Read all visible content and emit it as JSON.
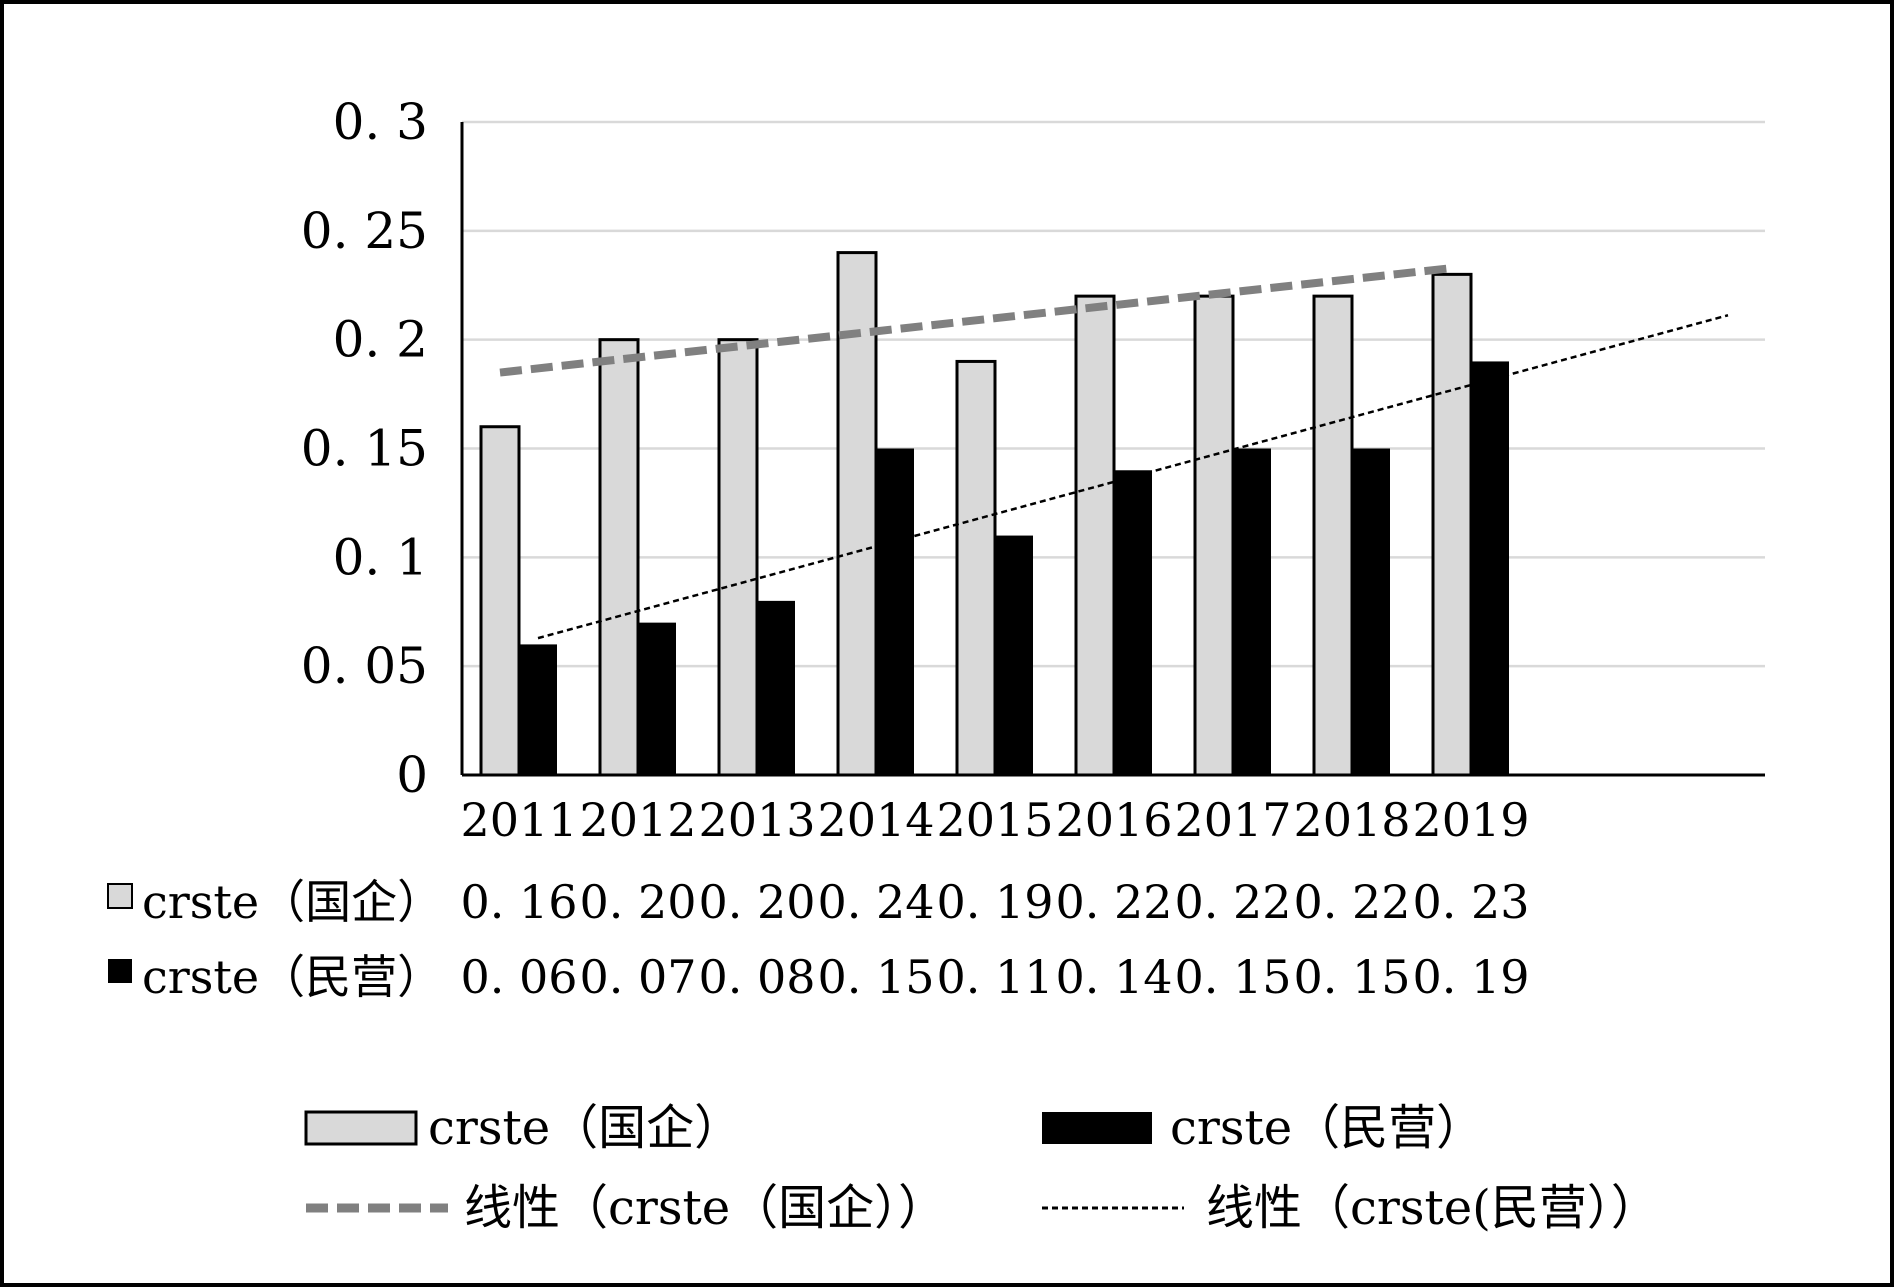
{
  "chart_data": {
    "type": "bar",
    "categories": [
      "2011",
      "2012",
      "2013",
      "2014",
      "2015",
      "2016",
      "2017",
      "2018",
      "2019"
    ],
    "series": [
      {
        "name": "crste（国企）",
        "values": [
          0.16,
          0.2,
          0.2,
          0.24,
          0.19,
          0.22,
          0.22,
          0.22,
          0.23
        ],
        "labels": [
          "0. 16",
          "0. 20",
          "0. 20",
          "0. 24",
          "0. 19",
          "0. 22",
          "0. 22",
          "0. 22",
          "0. 23"
        ],
        "color": "#d9d9d9"
      },
      {
        "name": "crste（民营）",
        "values": [
          0.06,
          0.07,
          0.08,
          0.15,
          0.11,
          0.14,
          0.15,
          0.15,
          0.19
        ],
        "labels": [
          "0. 06",
          "0. 07",
          "0. 08",
          "0. 15",
          "0. 11",
          "0. 14",
          "0. 15",
          "0. 15",
          "0. 19"
        ],
        "color": "#000000"
      }
    ],
    "trendlines": [
      {
        "name": "线性（crste（国企））",
        "series": 0,
        "type": "linear",
        "color": "#808080",
        "style": "dashed-thick"
      },
      {
        "name": "线性（crste(民营））",
        "series": 1,
        "type": "linear",
        "color": "#000000",
        "style": "dotted-thin",
        "forward_periods": 2
      }
    ],
    "yticks": [
      "0",
      "0. 05",
      "0. 1",
      "0. 15",
      "0. 2",
      "0. 25",
      "0. 3"
    ],
    "ytick_values": [
      0,
      0.05,
      0.1,
      0.15,
      0.2,
      0.25,
      0.3
    ],
    "ylim": [
      0,
      0.3
    ],
    "title": "",
    "xlabel": "",
    "ylabel": "",
    "grid": true,
    "data_table": true,
    "legend_position": "bottom"
  }
}
